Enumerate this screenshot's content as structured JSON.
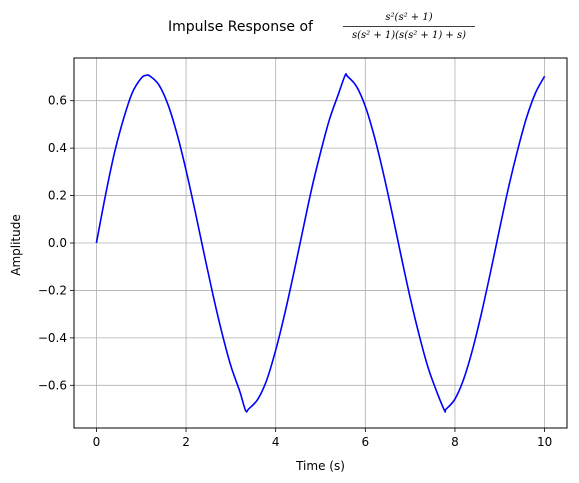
{
  "chart_data": {
    "type": "line",
    "title": {
      "prefix": "Impulse Response of",
      "numerator": "s²(s² + 1)",
      "denominator": "s(s² + 1)(s(s² + 1) + s)"
    },
    "xlabel": "Time (s)",
    "ylabel": "Amplitude",
    "xlim": [
      -0.5,
      10.5
    ],
    "ylim": [
      -0.78,
      0.78
    ],
    "xticks": [
      0,
      2,
      4,
      6,
      8,
      10
    ],
    "yticks": [
      -0.6,
      -0.4,
      -0.2,
      0.0,
      0.2,
      0.4,
      0.6
    ],
    "xtick_labels": [
      "0",
      "2",
      "4",
      "6",
      "8",
      "10"
    ],
    "ytick_labels": [
      "−0.6",
      "−0.4",
      "−0.2",
      "0.0",
      "0.2",
      "0.4",
      "0.6"
    ],
    "grid": true,
    "series": [
      {
        "color": "#0000ff",
        "x": [
          0.0,
          0.2,
          0.4,
          0.6,
          0.8,
          1.0,
          1.11,
          1.2,
          1.4,
          1.6,
          1.8,
          2.0,
          2.2,
          2.4,
          2.6,
          2.8,
          3.0,
          3.2,
          3.33,
          3.4,
          3.6,
          3.8,
          4.0,
          4.2,
          4.4,
          4.6,
          4.8,
          5.0,
          5.2,
          5.4,
          5.55,
          5.6,
          5.8,
          6.0,
          6.2,
          6.4,
          6.6,
          6.8,
          7.0,
          7.2,
          7.4,
          7.6,
          7.77,
          7.8,
          8.0,
          8.2,
          8.4,
          8.6,
          8.8,
          9.0,
          9.2,
          9.4,
          9.6,
          9.8,
          10.0
        ],
        "y": [
          0.0,
          0.199,
          0.378,
          0.52,
          0.633,
          0.695,
          0.707,
          0.703,
          0.665,
          0.582,
          0.459,
          0.307,
          0.136,
          -0.043,
          -0.218,
          -0.378,
          -0.518,
          -0.626,
          -0.707,
          -0.699,
          -0.659,
          -0.578,
          -0.452,
          -0.3,
          -0.13,
          0.049,
          0.226,
          0.381,
          0.521,
          0.628,
          0.707,
          0.703,
          0.661,
          0.576,
          0.45,
          0.296,
          0.124,
          -0.056,
          -0.23,
          -0.387,
          -0.525,
          -0.63,
          -0.707,
          -0.701,
          -0.658,
          -0.571,
          -0.444,
          -0.289,
          -0.117,
          0.063,
          0.238,
          0.393,
          0.53,
          0.634,
          0.703
        ]
      }
    ]
  }
}
